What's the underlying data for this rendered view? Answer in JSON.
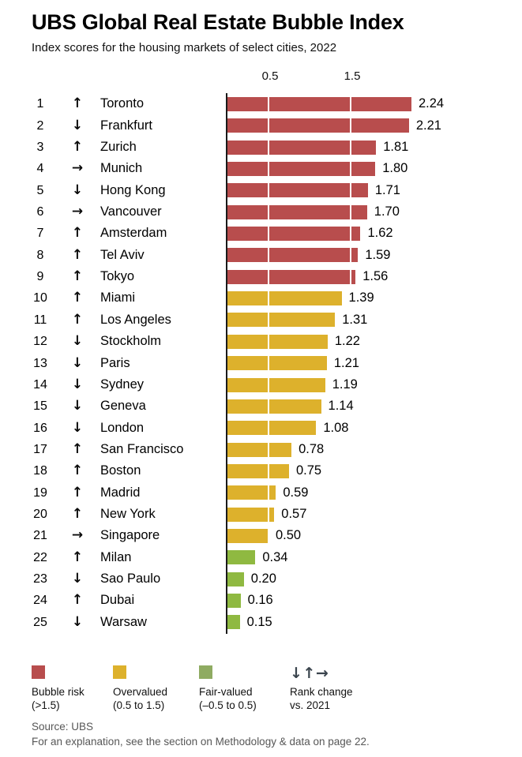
{
  "header": {
    "title": "UBS Global Real Estate Bubble Index",
    "subtitle": "Index scores for the housing markets of select cities, 2022"
  },
  "chart_data": {
    "type": "bar",
    "orientation": "horizontal",
    "title": "UBS Global Real Estate Bubble Index",
    "subtitle": "Index scores for the housing markets of select cities, 2022",
    "xlabel": "",
    "ylabel": "",
    "xlim": [
      0,
      2.4
    ],
    "tick_labels": [
      "0.5",
      "1.5"
    ],
    "tick_values": [
      0.5,
      1.5
    ],
    "grid": "white gridlines over bars at 0.5 and 1.5",
    "legend_position": "bottom",
    "rows": [
      {
        "rank": "1",
        "change": "up",
        "city": "Toronto",
        "value": 2.24,
        "label": "2.24",
        "category": "bubble_risk"
      },
      {
        "rank": "2",
        "change": "down",
        "city": "Frankfurt",
        "value": 2.21,
        "label": "2.21",
        "category": "bubble_risk"
      },
      {
        "rank": "3",
        "change": "up",
        "city": "Zurich",
        "value": 1.81,
        "label": "1.81",
        "category": "bubble_risk"
      },
      {
        "rank": "4",
        "change": "right",
        "city": "Munich",
        "value": 1.8,
        "label": "1.80",
        "category": "bubble_risk"
      },
      {
        "rank": "5",
        "change": "down",
        "city": "Hong Kong",
        "value": 1.71,
        "label": "1.71",
        "category": "bubble_risk"
      },
      {
        "rank": "6",
        "change": "right",
        "city": "Vancouver",
        "value": 1.7,
        "label": "1.70",
        "category": "bubble_risk"
      },
      {
        "rank": "7",
        "change": "up",
        "city": "Amsterdam",
        "value": 1.62,
        "label": "1.62",
        "category": "bubble_risk"
      },
      {
        "rank": "8",
        "change": "up",
        "city": "Tel Aviv",
        "value": 1.59,
        "label": "1.59",
        "category": "bubble_risk"
      },
      {
        "rank": "9",
        "change": "up",
        "city": "Tokyo",
        "value": 1.56,
        "label": "1.56",
        "category": "bubble_risk"
      },
      {
        "rank": "10",
        "change": "up",
        "city": "Miami",
        "value": 1.39,
        "label": "1.39",
        "category": "overvalued"
      },
      {
        "rank": "11",
        "change": "up",
        "city": "Los Angeles",
        "value": 1.31,
        "label": "1.31",
        "category": "overvalued"
      },
      {
        "rank": "12",
        "change": "down",
        "city": "Stockholm",
        "value": 1.22,
        "label": "1.22",
        "category": "overvalued"
      },
      {
        "rank": "13",
        "change": "down",
        "city": "Paris",
        "value": 1.21,
        "label": "1.21",
        "category": "overvalued"
      },
      {
        "rank": "14",
        "change": "down",
        "city": "Sydney",
        "value": 1.19,
        "label": "1.19",
        "category": "overvalued"
      },
      {
        "rank": "15",
        "change": "down",
        "city": "Geneva",
        "value": 1.14,
        "label": "1.14",
        "category": "overvalued"
      },
      {
        "rank": "16",
        "change": "down",
        "city": "London",
        "value": 1.08,
        "label": "1.08",
        "category": "overvalued"
      },
      {
        "rank": "17",
        "change": "up",
        "city": "San Francisco",
        "value": 0.78,
        "label": "0.78",
        "category": "overvalued"
      },
      {
        "rank": "18",
        "change": "up",
        "city": "Boston",
        "value": 0.75,
        "label": "0.75",
        "category": "overvalued"
      },
      {
        "rank": "19",
        "change": "up",
        "city": "Madrid",
        "value": 0.59,
        "label": "0.59",
        "category": "overvalued"
      },
      {
        "rank": "20",
        "change": "up",
        "city": "New York",
        "value": 0.57,
        "label": "0.57",
        "category": "overvalued"
      },
      {
        "rank": "21",
        "change": "right",
        "city": "Singapore",
        "value": 0.5,
        "label": "0.50",
        "category": "overvalued"
      },
      {
        "rank": "22",
        "change": "up",
        "city": "Milan",
        "value": 0.34,
        "label": "0.34",
        "category": "fair_valued"
      },
      {
        "rank": "23",
        "change": "down",
        "city": "Sao Paulo",
        "value": 0.2,
        "label": "0.20",
        "category": "fair_valued"
      },
      {
        "rank": "24",
        "change": "up",
        "city": "Dubai",
        "value": 0.16,
        "label": "0.16",
        "category": "fair_valued"
      },
      {
        "rank": "25",
        "change": "down",
        "city": "Warsaw",
        "value": 0.15,
        "label": "0.15",
        "category": "fair_valued"
      }
    ]
  },
  "arrow_glyphs": {
    "up": "↑",
    "down": "↓",
    "right": "→"
  },
  "colors": {
    "bubble_risk": "#b84d4d",
    "overvalued": "#ddb12c",
    "fair_valued": "#8fb941",
    "legend_fair_valued": "#8fab62",
    "legend_arrows": "#3a444d",
    "axis_line": "#1a1a1a",
    "footer_text": "#575757"
  },
  "legend": {
    "items": [
      {
        "label": "Bubble risk",
        "range": "(>1.5)"
      },
      {
        "label": "Overvalued",
        "range": "(0.5 to 1.5)"
      },
      {
        "label": "Fair-valued",
        "range": "(–0.5 to 0.5)"
      },
      {
        "label": "Rank change",
        "range": "vs. 2021",
        "symbols": "↓↑→"
      }
    ]
  },
  "footer": {
    "source": "Source: UBS",
    "note": "For an explanation, see the section on Methodology & data on page 22."
  }
}
